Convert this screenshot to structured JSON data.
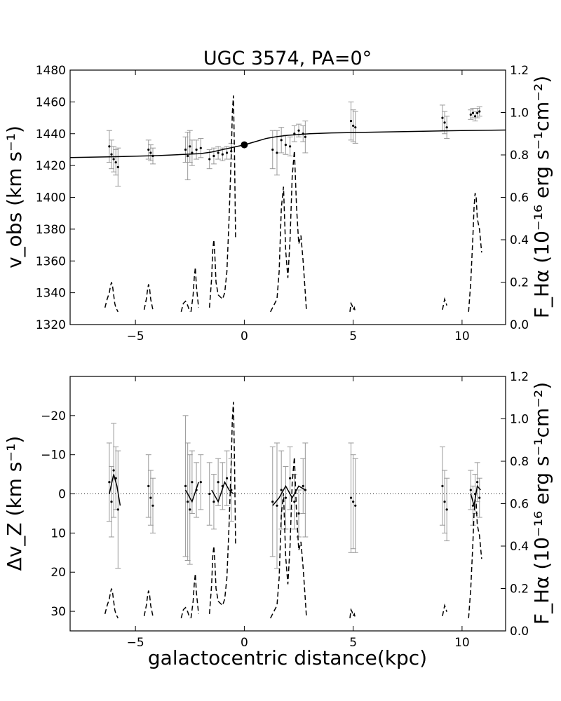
{
  "chart_data": [
    {
      "type": "scatter",
      "title": "UGC 3574, PA=0°",
      "xlabel": "",
      "ylabel": "v_obs (km s⁻¹)",
      "y2label": "F_Hα (10⁻¹⁶ erg s⁻¹cm⁻²)",
      "xlim": [
        -8,
        12
      ],
      "ylim": [
        1320,
        1480
      ],
      "y2lim": [
        0.0,
        1.2
      ],
      "xticks": [
        "−5",
        "0",
        "5",
        "10"
      ],
      "xtick_values": [
        -5,
        0,
        5,
        10
      ],
      "yticks": [
        "1320",
        "1340",
        "1360",
        "1380",
        "1400",
        "1420",
        "1440",
        "1460",
        "1480"
      ],
      "ytick_values": [
        1320,
        1340,
        1360,
        1380,
        1400,
        1420,
        1440,
        1460,
        1480
      ],
      "y2ticks": [
        "0.0",
        "0.2",
        "0.4",
        "0.6",
        "0.8",
        "1.0",
        "1.2"
      ],
      "y2tick_values": [
        0.0,
        0.2,
        0.4,
        0.6,
        0.8,
        1.0,
        1.2
      ],
      "series": [
        {
          "kind": "points_with_errorbars",
          "x": [
            -6.2,
            -6.1,
            -6.0,
            -5.9,
            -5.8,
            -4.4,
            -4.3,
            -4.2,
            -2.7,
            -2.6,
            -2.5,
            -2.4,
            -2.2,
            -2.0,
            -1.6,
            -1.4,
            -1.2,
            -1.0,
            -0.8,
            -0.6,
            1.3,
            1.5,
            1.7,
            1.9,
            2.1,
            2.3,
            2.5,
            2.7,
            2.8,
            4.9,
            5.0,
            5.1,
            9.1,
            9.2,
            9.3,
            10.4,
            10.5,
            10.6,
            10.7,
            10.8
          ],
          "y": [
            1432,
            1427,
            1424,
            1422,
            1419,
            1430,
            1428,
            1426,
            1430,
            1426,
            1432,
            1428,
            1430,
            1431,
            1424,
            1426,
            1428,
            1427,
            1428,
            1429,
            1430,
            1428,
            1436,
            1433,
            1432,
            1440,
            1442,
            1440,
            1438,
            1448,
            1445,
            1444,
            1450,
            1447,
            1444,
            1452,
            1453,
            1451,
            1453,
            1454
          ],
          "err": [
            10,
            9,
            8,
            8,
            12,
            6,
            5,
            5,
            8,
            15,
            10,
            8,
            6,
            6,
            6,
            5,
            4,
            4,
            4,
            5,
            12,
            14,
            8,
            6,
            6,
            5,
            4,
            5,
            10,
            12,
            10,
            10,
            8,
            7,
            7,
            3,
            3,
            3,
            3,
            3
          ]
        },
        {
          "kind": "model_curve",
          "x": [
            -8,
            -6,
            -4,
            -2,
            -1.5,
            -1,
            -0.5,
            0,
            0.5,
            1,
            1.5,
            2,
            3,
            4,
            6,
            8,
            10,
            12
          ],
          "y": [
            1425,
            1425.5,
            1426.2,
            1427.5,
            1428.5,
            1430,
            1431.5,
            1433,
            1435,
            1437,
            1438.2,
            1439,
            1440,
            1440.5,
            1441,
            1441.5,
            1442,
            1442.3
          ]
        },
        {
          "kind": "flux_dashed",
          "axis": "y2",
          "segments": [
            {
              "x": [
                -6.4,
                -6.3,
                -6.2,
                -6.15,
                -6.1,
                -6.05,
                -6.0,
                -5.95,
                -5.9,
                -5.8
              ],
              "y": [
                0.08,
                0.12,
                0.15,
                0.18,
                0.2,
                0.18,
                0.14,
                0.1,
                0.08,
                0.06
              ]
            },
            {
              "x": [
                -4.6,
                -4.5,
                -4.45,
                -4.4,
                -4.35,
                -4.3,
                -4.2
              ],
              "y": [
                0.07,
                0.12,
                0.16,
                0.19,
                0.17,
                0.12,
                0.07
              ]
            },
            {
              "x": [
                -2.9,
                -2.8,
                -2.7,
                -2.6,
                -2.5
              ],
              "y": [
                0.06,
                0.1,
                0.11,
                0.09,
                0.06
              ]
            },
            {
              "x": [
                -2.45,
                -2.35,
                -2.3,
                -2.25,
                -2.2,
                -2.1
              ],
              "y": [
                0.06,
                0.14,
                0.22,
                0.27,
                0.18,
                0.08
              ]
            },
            {
              "x": [
                -1.6,
                -1.5,
                -1.45,
                -1.4,
                -1.35,
                -1.3,
                -1.2,
                -1.0,
                -0.9,
                -0.8,
                -0.7,
                -0.6,
                -0.55,
                -0.5,
                -0.45,
                -0.4
              ],
              "y": [
                0.08,
                0.22,
                0.35,
                0.4,
                0.32,
                0.2,
                0.14,
                0.12,
                0.15,
                0.25,
                0.5,
                0.8,
                1.0,
                1.08,
                0.8,
                0.4
              ]
            },
            {
              "x": [
                1.2,
                1.3,
                1.4,
                1.5,
                1.6,
                1.7,
                1.8,
                1.9,
                2.0,
                2.1,
                2.2,
                2.3,
                2.4,
                2.5,
                2.6,
                2.7,
                2.8,
                2.85
              ],
              "y": [
                0.06,
                0.08,
                0.1,
                0.12,
                0.25,
                0.55,
                0.65,
                0.35,
                0.22,
                0.4,
                0.7,
                0.82,
                0.55,
                0.38,
                0.42,
                0.3,
                0.15,
                0.07
              ]
            },
            {
              "x": [
                4.85,
                4.9,
                4.95,
                5.0,
                5.05,
                5.1
              ],
              "y": [
                0.06,
                0.1,
                0.09,
                0.07,
                0.08,
                0.06
              ]
            },
            {
              "x": [
                9.1,
                9.2,
                9.3
              ],
              "y": [
                0.07,
                0.12,
                0.09
              ]
            },
            {
              "x": [
                10.3,
                10.4,
                10.5,
                10.55,
                10.6,
                10.65,
                10.7,
                10.8,
                10.9
              ],
              "y": [
                0.06,
                0.2,
                0.42,
                0.55,
                0.62,
                0.6,
                0.5,
                0.45,
                0.34
              ]
            }
          ]
        }
      ],
      "markers": [
        {
          "x": 0,
          "y": 1433
        }
      ]
    },
    {
      "type": "scatter",
      "title": "",
      "xlabel": "galactocentric distance(kpc)",
      "ylabel": "Δv_Z (km s⁻¹)",
      "y2label": "F_Hα (10⁻¹⁶ erg s⁻¹cm⁻²)",
      "xlim": [
        -8,
        12
      ],
      "ylim": [
        35,
        -30
      ],
      "y_inverted": true,
      "y2lim": [
        0.0,
        1.2
      ],
      "xticks": [
        "−5",
        "0",
        "5",
        "10"
      ],
      "xtick_values": [
        -5,
        0,
        5,
        10
      ],
      "yticks": [
        "−20",
        "−10",
        "0",
        "10",
        "20",
        "30"
      ],
      "ytick_values": [
        -20,
        -10,
        0,
        10,
        20,
        30
      ],
      "y2ticks": [
        "0.0",
        "0.2",
        "0.4",
        "0.6",
        "0.8",
        "1.0",
        "1.2"
      ],
      "y2tick_values": [
        0.0,
        0.2,
        0.4,
        0.6,
        0.8,
        1.0,
        1.2
      ],
      "series": [
        {
          "kind": "points_with_errorbars",
          "x": [
            -6.2,
            -6.1,
            -6.0,
            -5.9,
            -5.8,
            -4.4,
            -4.3,
            -4.2,
            -2.7,
            -2.6,
            -2.5,
            -2.4,
            -2.2,
            -2.0,
            -1.6,
            -1.4,
            -1.2,
            -1.0,
            -0.8,
            -0.6,
            1.3,
            1.5,
            1.7,
            1.9,
            2.1,
            2.3,
            2.5,
            2.7,
            2.8,
            4.9,
            5.0,
            5.1,
            9.1,
            9.2,
            9.3,
            10.4,
            10.5,
            10.6,
            10.7,
            10.8
          ],
          "y": [
            -3,
            2,
            -6,
            -4,
            4,
            -2,
            1,
            3,
            -2,
            2,
            4,
            -3,
            -1,
            -3,
            0,
            2,
            -3,
            -2,
            -4,
            -1,
            2,
            3,
            -1,
            1,
            -4,
            2,
            5,
            -2,
            -1,
            1,
            2,
            3,
            -2,
            2,
            4,
            -1,
            3,
            0,
            -3,
            1
          ],
          "err": [
            10,
            9,
            12,
            8,
            15,
            8,
            7,
            7,
            18,
            15,
            14,
            8,
            7,
            7,
            8,
            7,
            6,
            6,
            7,
            8,
            14,
            16,
            10,
            8,
            8,
            7,
            6,
            7,
            12,
            14,
            12,
            12,
            10,
            8,
            8,
            5,
            5,
            5,
            5,
            5
          ]
        },
        {
          "kind": "smoothed",
          "segments": [
            {
              "x": [
                -6.2,
                -6.0,
                -5.85,
                -5.7
              ],
              "y": [
                0,
                -5,
                -2,
                3
              ]
            },
            {
              "x": [
                -2.7,
                -2.4,
                -2.1
              ],
              "y": [
                -1,
                2,
                -3
              ]
            },
            {
              "x": [
                -1.5,
                -1.2,
                -0.9,
                -0.7,
                -0.5
              ],
              "y": [
                -1,
                2,
                -3,
                -1,
                0
              ]
            },
            {
              "x": [
                1.3,
                1.6,
                1.9,
                2.2,
                2.5,
                2.8
              ],
              "y": [
                3,
                1,
                -2,
                1,
                -2,
                -1
              ]
            },
            {
              "x": [
                10.4,
                10.55,
                10.7,
                10.85
              ],
              "y": [
                0,
                3,
                -2,
                -1
              ]
            }
          ]
        },
        {
          "kind": "flux_dashed",
          "axis": "y2",
          "segments": [
            {
              "x": [
                -6.4,
                -6.3,
                -6.2,
                -6.15,
                -6.1,
                -6.05,
                -6.0,
                -5.95,
                -5.9,
                -5.8
              ],
              "y": [
                0.08,
                0.12,
                0.15,
                0.18,
                0.2,
                0.18,
                0.14,
                0.1,
                0.08,
                0.06
              ]
            },
            {
              "x": [
                -4.6,
                -4.5,
                -4.45,
                -4.4,
                -4.35,
                -4.3,
                -4.2
              ],
              "y": [
                0.07,
                0.12,
                0.16,
                0.19,
                0.17,
                0.12,
                0.07
              ]
            },
            {
              "x": [
                -2.9,
                -2.8,
                -2.7,
                -2.6,
                -2.5
              ],
              "y": [
                0.06,
                0.1,
                0.11,
                0.09,
                0.06
              ]
            },
            {
              "x": [
                -2.45,
                -2.35,
                -2.3,
                -2.25,
                -2.2,
                -2.1
              ],
              "y": [
                0.06,
                0.14,
                0.22,
                0.27,
                0.18,
                0.08
              ]
            },
            {
              "x": [
                -1.6,
                -1.5,
                -1.45,
                -1.4,
                -1.35,
                -1.3,
                -1.2,
                -1.0,
                -0.9,
                -0.8,
                -0.7,
                -0.6,
                -0.55,
                -0.5,
                -0.45,
                -0.4
              ],
              "y": [
                0.08,
                0.22,
                0.35,
                0.4,
                0.32,
                0.2,
                0.14,
                0.12,
                0.15,
                0.25,
                0.5,
                0.8,
                1.0,
                1.08,
                0.8,
                0.4
              ]
            },
            {
              "x": [
                1.2,
                1.3,
                1.4,
                1.5,
                1.6,
                1.7,
                1.8,
                1.9,
                2.0,
                2.1,
                2.2,
                2.3,
                2.4,
                2.5,
                2.6,
                2.7,
                2.8,
                2.85
              ],
              "y": [
                0.06,
                0.08,
                0.1,
                0.12,
                0.25,
                0.55,
                0.65,
                0.35,
                0.22,
                0.4,
                0.7,
                0.82,
                0.55,
                0.38,
                0.42,
                0.3,
                0.15,
                0.07
              ]
            },
            {
              "x": [
                4.85,
                4.9,
                4.95,
                5.0,
                5.05,
                5.1
              ],
              "y": [
                0.06,
                0.1,
                0.09,
                0.07,
                0.08,
                0.06
              ]
            },
            {
              "x": [
                9.1,
                9.2,
                9.3
              ],
              "y": [
                0.07,
                0.12,
                0.09
              ]
            },
            {
              "x": [
                10.3,
                10.4,
                10.5,
                10.55,
                10.6,
                10.65,
                10.7,
                10.8,
                10.9
              ],
              "y": [
                0.06,
                0.2,
                0.42,
                0.55,
                0.62,
                0.6,
                0.5,
                0.45,
                0.34
              ]
            }
          ]
        },
        {
          "kind": "reference_line",
          "style": "dotted",
          "y": 0
        }
      ]
    }
  ]
}
